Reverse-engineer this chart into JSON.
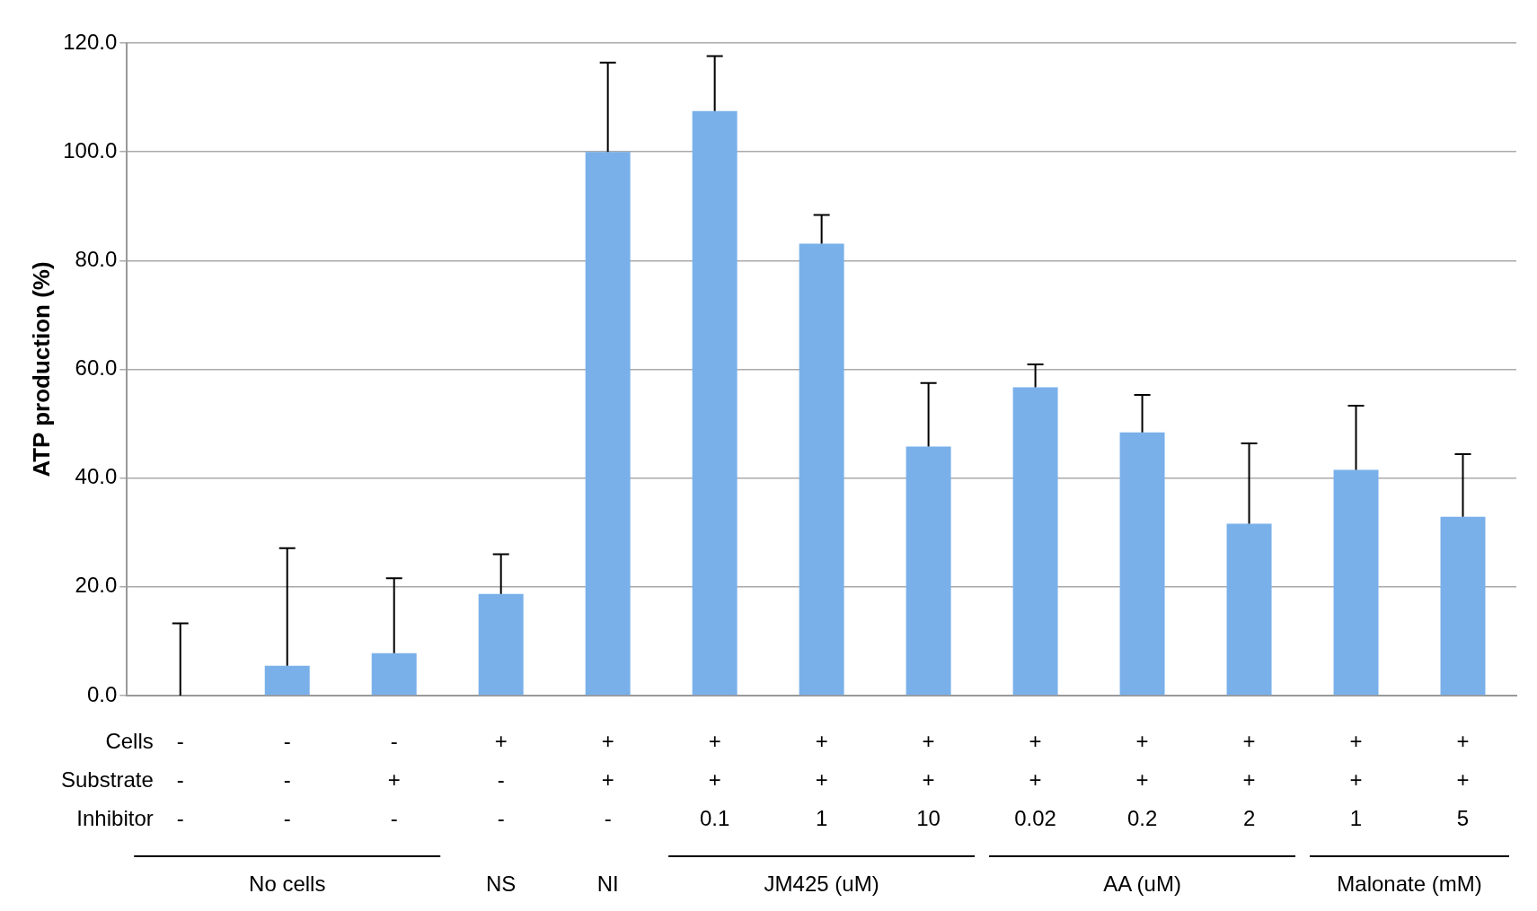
{
  "chart_data": {
    "type": "bar",
    "ylabel": "ATP production (%)",
    "categories": [
      "-\n-\n-",
      "-\n-\n-\nNo cells",
      "-\n+\n-",
      "+\n-\n-\nNS",
      "+\n+\n-\nNI",
      "+\n+\n0.1",
      "+\n+\n1\nJM425 (uM)",
      "+\n+\n10",
      "+\n+\n0.02",
      "+\n+\n0.2\nAA (uM)",
      "+\n+\n2",
      "+\n+\n1",
      "+\n+\n5\nMalonate (mM)"
    ],
    "values": [
      0,
      5.5,
      7.8,
      18.7,
      100,
      107.5,
      83.1,
      45.8,
      56.7,
      48.4,
      31.6,
      41.5,
      32.9
    ],
    "errors": [
      [
        0,
        13.3
      ],
      [
        5.5,
        27.1
      ],
      [
        7.8,
        21.6
      ],
      [
        18.7,
        26
      ],
      [
        100,
        116.4
      ],
      [
        107.5,
        117.6
      ],
      [
        83.1,
        88.4
      ],
      [
        45.8,
        57.5
      ],
      [
        56.7,
        60.9
      ],
      [
        48.4,
        55.3
      ],
      [
        31.6,
        46.4
      ],
      [
        41.5,
        53.3
      ],
      [
        32.9,
        44.4
      ]
    ],
    "color": "#79b0ea",
    "ylim": [
      0,
      120
    ],
    "yticks": [
      {
        "value": 0,
        "label": "0.0"
      },
      {
        "value": 20,
        "label": "20.0"
      },
      {
        "value": 40,
        "label": "40.0"
      },
      {
        "value": 60,
        "label": "60.0"
      },
      {
        "value": 80,
        "label": "80.0"
      },
      {
        "value": 100,
        "label": "100.0"
      },
      {
        "value": 120,
        "label": "120.0"
      }
    ],
    "grid": "y",
    "annotations": [
      "Cells",
      "Substrate",
      "Inhibitor"
    ]
  }
}
